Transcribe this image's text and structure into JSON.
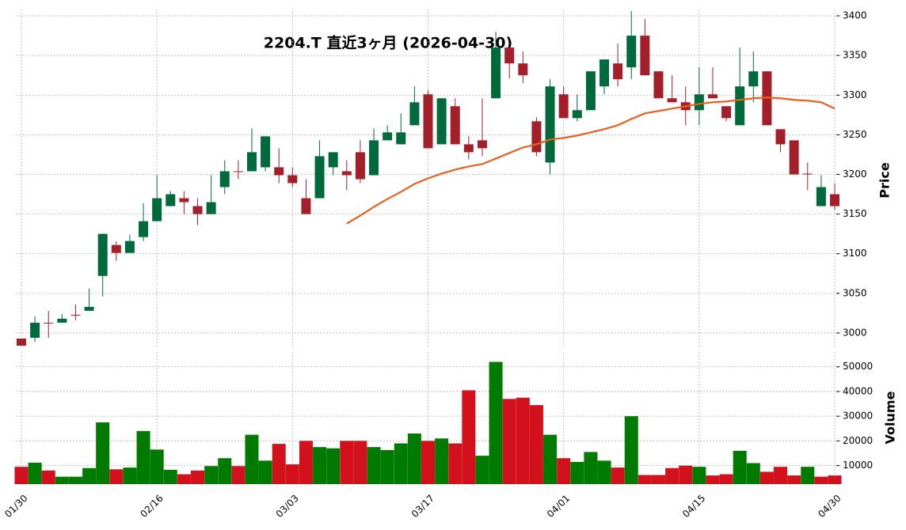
{
  "chart_data": {
    "type": "candlestick",
    "title": "2204.T  直近3ヶ月  (2026-04-30)",
    "categories": [
      "01/30",
      null,
      null,
      null,
      null,
      null,
      null,
      null,
      null,
      null,
      "02/16",
      null,
      null,
      null,
      null,
      null,
      null,
      null,
      null,
      null,
      "03/03",
      null,
      null,
      null,
      null,
      null,
      null,
      null,
      null,
      null,
      "03/17",
      null,
      null,
      null,
      null,
      null,
      null,
      null,
      null,
      null,
      "04/01",
      null,
      null,
      null,
      null,
      null,
      null,
      null,
      null,
      null,
      "04/15",
      null,
      null,
      null,
      null,
      null,
      null,
      null,
      null,
      null,
      "04/30"
    ],
    "open": [
      2993,
      2994,
      3013,
      3013,
      3023,
      3028,
      3072,
      3111,
      3101,
      3121,
      3141,
      3160,
      3170,
      3160,
      3150,
      3184,
      3204,
      3204,
      3209,
      3209,
      3199,
      3170,
      3170,
      3209,
      3204,
      3228,
      3199,
      3243,
      3238,
      3262,
      3301,
      3238,
      3286,
      3238,
      3243,
      3296,
      3360,
      3340,
      3267,
      3215,
      3301,
      3271,
      3281,
      3311,
      3340,
      3335,
      3375,
      3330,
      3296,
      3291,
      3281,
      3301,
      3286,
      3262,
      3311,
      3330,
      3257,
      3243,
      3201,
      3160,
      3175
    ],
    "high": [
      2993,
      3021,
      3028,
      3024,
      3036,
      3056,
      3125,
      3116,
      3124,
      3164,
      3199,
      3179,
      3179,
      3170,
      3199,
      3218,
      3218,
      3258,
      3248,
      3233,
      3209,
      3194,
      3243,
      3228,
      3218,
      3243,
      3258,
      3262,
      3277,
      3311,
      3306,
      3296,
      3296,
      3248,
      3296,
      3380,
      3360,
      3355,
      3272,
      3320,
      3311,
      3301,
      3330,
      3345,
      3365,
      3406,
      3396,
      3330,
      3325,
      3311,
      3335,
      3335,
      3286,
      3360,
      3355,
      3330,
      3257,
      3243,
      3215,
      3199,
      3189
    ],
    "low": [
      2984,
      2989,
      2994,
      3013,
      3016,
      3028,
      3046,
      3091,
      3101,
      3116,
      3141,
      3160,
      3150,
      3136,
      3150,
      3175,
      3194,
      3204,
      3204,
      3189,
      3184,
      3150,
      3170,
      3199,
      3180,
      3189,
      3199,
      3243,
      3238,
      3262,
      3233,
      3238,
      3238,
      3219,
      3223,
      3296,
      3321,
      3315,
      3223,
      3200,
      3271,
      3267,
      3281,
      3301,
      3311,
      3320,
      3325,
      3296,
      3291,
      3262,
      3262,
      3296,
      3267,
      3262,
      3291,
      3262,
      3228,
      3200,
      3180,
      3160,
      3155
    ],
    "close": [
      2984,
      3013,
      3012,
      3018,
      3022,
      3033,
      3125,
      3101,
      3116,
      3141,
      3170,
      3175,
      3165,
      3150,
      3165,
      3204,
      3203,
      3228,
      3248,
      3199,
      3189,
      3150,
      3223,
      3228,
      3199,
      3194,
      3243,
      3253,
      3253,
      3291,
      3233,
      3296,
      3238,
      3228,
      3233,
      3360,
      3340,
      3325,
      3228,
      3311,
      3271,
      3281,
      3330,
      3345,
      3320,
      3375,
      3325,
      3296,
      3291,
      3281,
      3301,
      3296,
      3271,
      3311,
      3330,
      3262,
      3238,
      3200,
      3200,
      3184,
      3160
    ],
    "up_color": "#006a3c",
    "down_color": "#a31f2a",
    "moving_average": {
      "color": "#e8601c",
      "values": [
        null,
        null,
        null,
        null,
        null,
        null,
        null,
        null,
        null,
        null,
        null,
        null,
        null,
        null,
        null,
        null,
        null,
        null,
        null,
        null,
        null,
        null,
        null,
        null,
        3138,
        3148,
        3159,
        3169,
        3178,
        3188,
        3195,
        3201,
        3206,
        3210,
        3213,
        3220,
        3227,
        3234,
        3238,
        3244,
        3246,
        3249,
        3253,
        3257,
        3262,
        3270,
        3277,
        3280,
        3283,
        3286,
        3289,
        3291,
        3292,
        3294,
        3296,
        3297,
        3296,
        3294,
        3293,
        3291,
        3283
      ]
    },
    "ylabel": "Price",
    "ylim": [
      2981,
      3408
    ],
    "yticks": [
      3000,
      3050,
      3100,
      3150,
      3200,
      3250,
      3300,
      3350,
      3400
    ],
    "grid": true,
    "volume": {
      "ylabel": "Volume",
      "up_color": "#007a00",
      "down_color": "#d3111c",
      "ylim": [
        2500,
        56000
      ],
      "yticks": [
        10000,
        20000,
        30000,
        40000,
        50000
      ],
      "values": [
        9500,
        11200,
        8000,
        5500,
        5500,
        9000,
        27500,
        8500,
        9200,
        24000,
        16500,
        8300,
        6500,
        8000,
        9800,
        13000,
        9800,
        22500,
        12000,
        18800,
        10500,
        20000,
        17500,
        17000,
        20000,
        20000,
        17500,
        16300,
        19000,
        23000,
        20000,
        21000,
        19000,
        40500,
        14000,
        52000,
        37000,
        37500,
        34500,
        22500,
        13000,
        11500,
        15500,
        12000,
        9200,
        30000,
        6200,
        6200,
        9000,
        10000,
        9500,
        6000,
        6500,
        16000,
        11000,
        7500,
        9500,
        6000,
        9500,
        5500,
        6000
      ]
    }
  }
}
